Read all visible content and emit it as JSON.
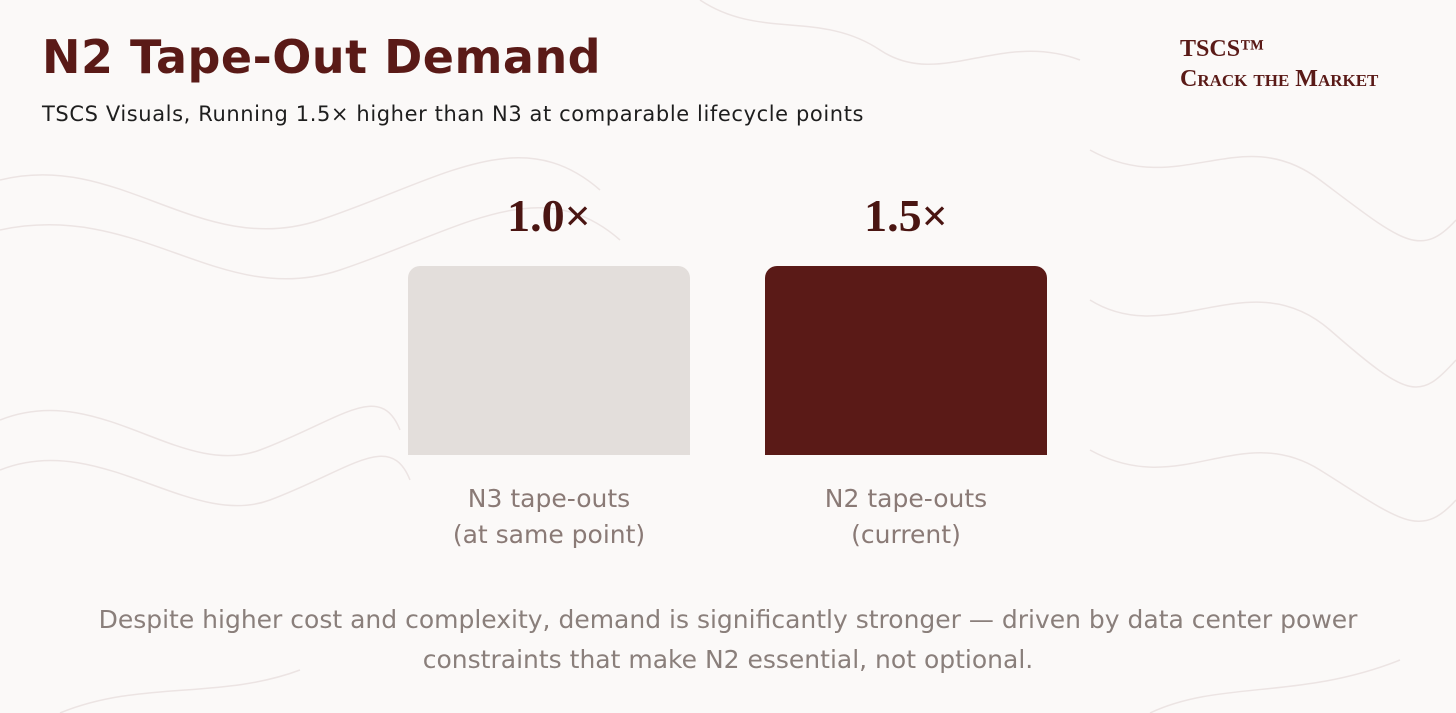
{
  "header": {
    "title": "N2 Tape-Out Demand",
    "subtitle": "TSCS Visuals, Running 1.5× higher than N3 at comparable lifecycle points"
  },
  "brand": {
    "name": "TSCS™",
    "tagline": "Crack the Market"
  },
  "cards": [
    {
      "value_label": "1.0×",
      "label_lines": [
        "N3 tape-outs",
        "(at same point)"
      ],
      "color": "#e3dedb"
    },
    {
      "value_label": "1.5×",
      "label_lines": [
        "N2 tape-outs",
        "(current)"
      ],
      "color": "#5a1a17"
    }
  ],
  "footnote": [
    "Despite higher cost and complexity, demand is significantly stronger — driven by data center power",
    "constraints that make N2 essential, not optional."
  ]
}
